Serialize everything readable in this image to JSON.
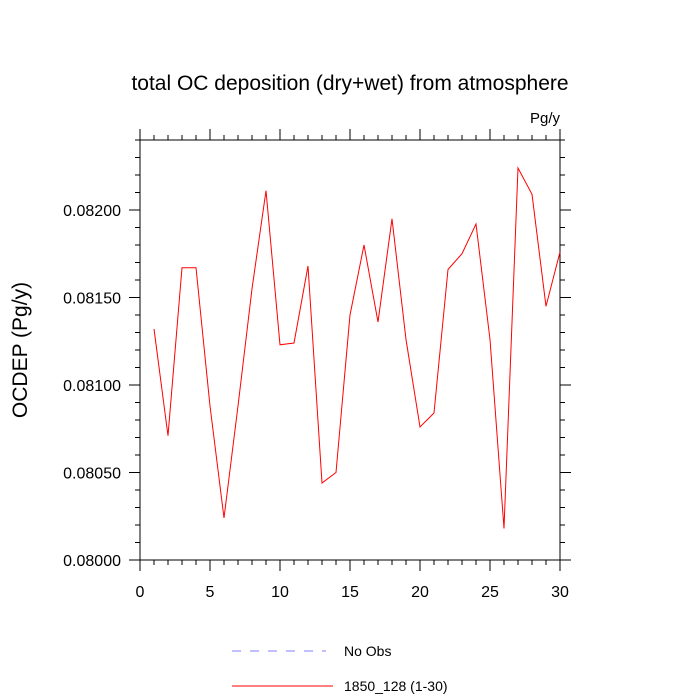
{
  "chart_data": {
    "type": "line",
    "title": "total OC deposition (dry+wet) from atmosphere",
    "units_label": "Pg/y",
    "xlabel": "",
    "ylabel": "OCDEP  (Pg/y)",
    "xlim": [
      0,
      30
    ],
    "ylim": [
      0.08,
      0.0824
    ],
    "x_ticks": [
      0,
      5,
      10,
      15,
      20,
      25,
      30
    ],
    "x_tick_labels": [
      "0",
      "5",
      "10",
      "15",
      "20",
      "25",
      "30"
    ],
    "x_minor_step": 1,
    "y_ticks": [
      0.08,
      0.0805,
      0.081,
      0.0815,
      0.082
    ],
    "y_tick_labels": [
      "0.08000",
      "0.08050",
      "0.08100",
      "0.08150",
      "0.08200"
    ],
    "y_minor_step": 0.0001,
    "series": [
      {
        "name": "1850_128 (1-30)",
        "color": "#ff0000",
        "style": "solid",
        "x": [
          1,
          2,
          3,
          4,
          5,
          6,
          7,
          8,
          9,
          10,
          11,
          12,
          13,
          14,
          15,
          16,
          17,
          18,
          19,
          20,
          21,
          22,
          23,
          24,
          25,
          26,
          27,
          28,
          29,
          30
        ],
        "values": [
          0.08132,
          0.08071,
          0.08167,
          0.08167,
          0.08088,
          0.08024,
          0.08088,
          0.08155,
          0.08211,
          0.08123,
          0.08124,
          0.08168,
          0.08044,
          0.0805,
          0.0814,
          0.0818,
          0.08136,
          0.08195,
          0.08126,
          0.08076,
          0.08084,
          0.08166,
          0.08175,
          0.08192,
          0.08126,
          0.08018,
          0.08224,
          0.08209,
          0.08145,
          0.08176
        ]
      }
    ],
    "legend": [
      {
        "label": "No Obs",
        "color": "#8080ff",
        "style": "dashed"
      },
      {
        "label": "1850_128 (1-30)",
        "color": "#ff0000",
        "style": "solid"
      }
    ],
    "legend_position": "bottom"
  }
}
